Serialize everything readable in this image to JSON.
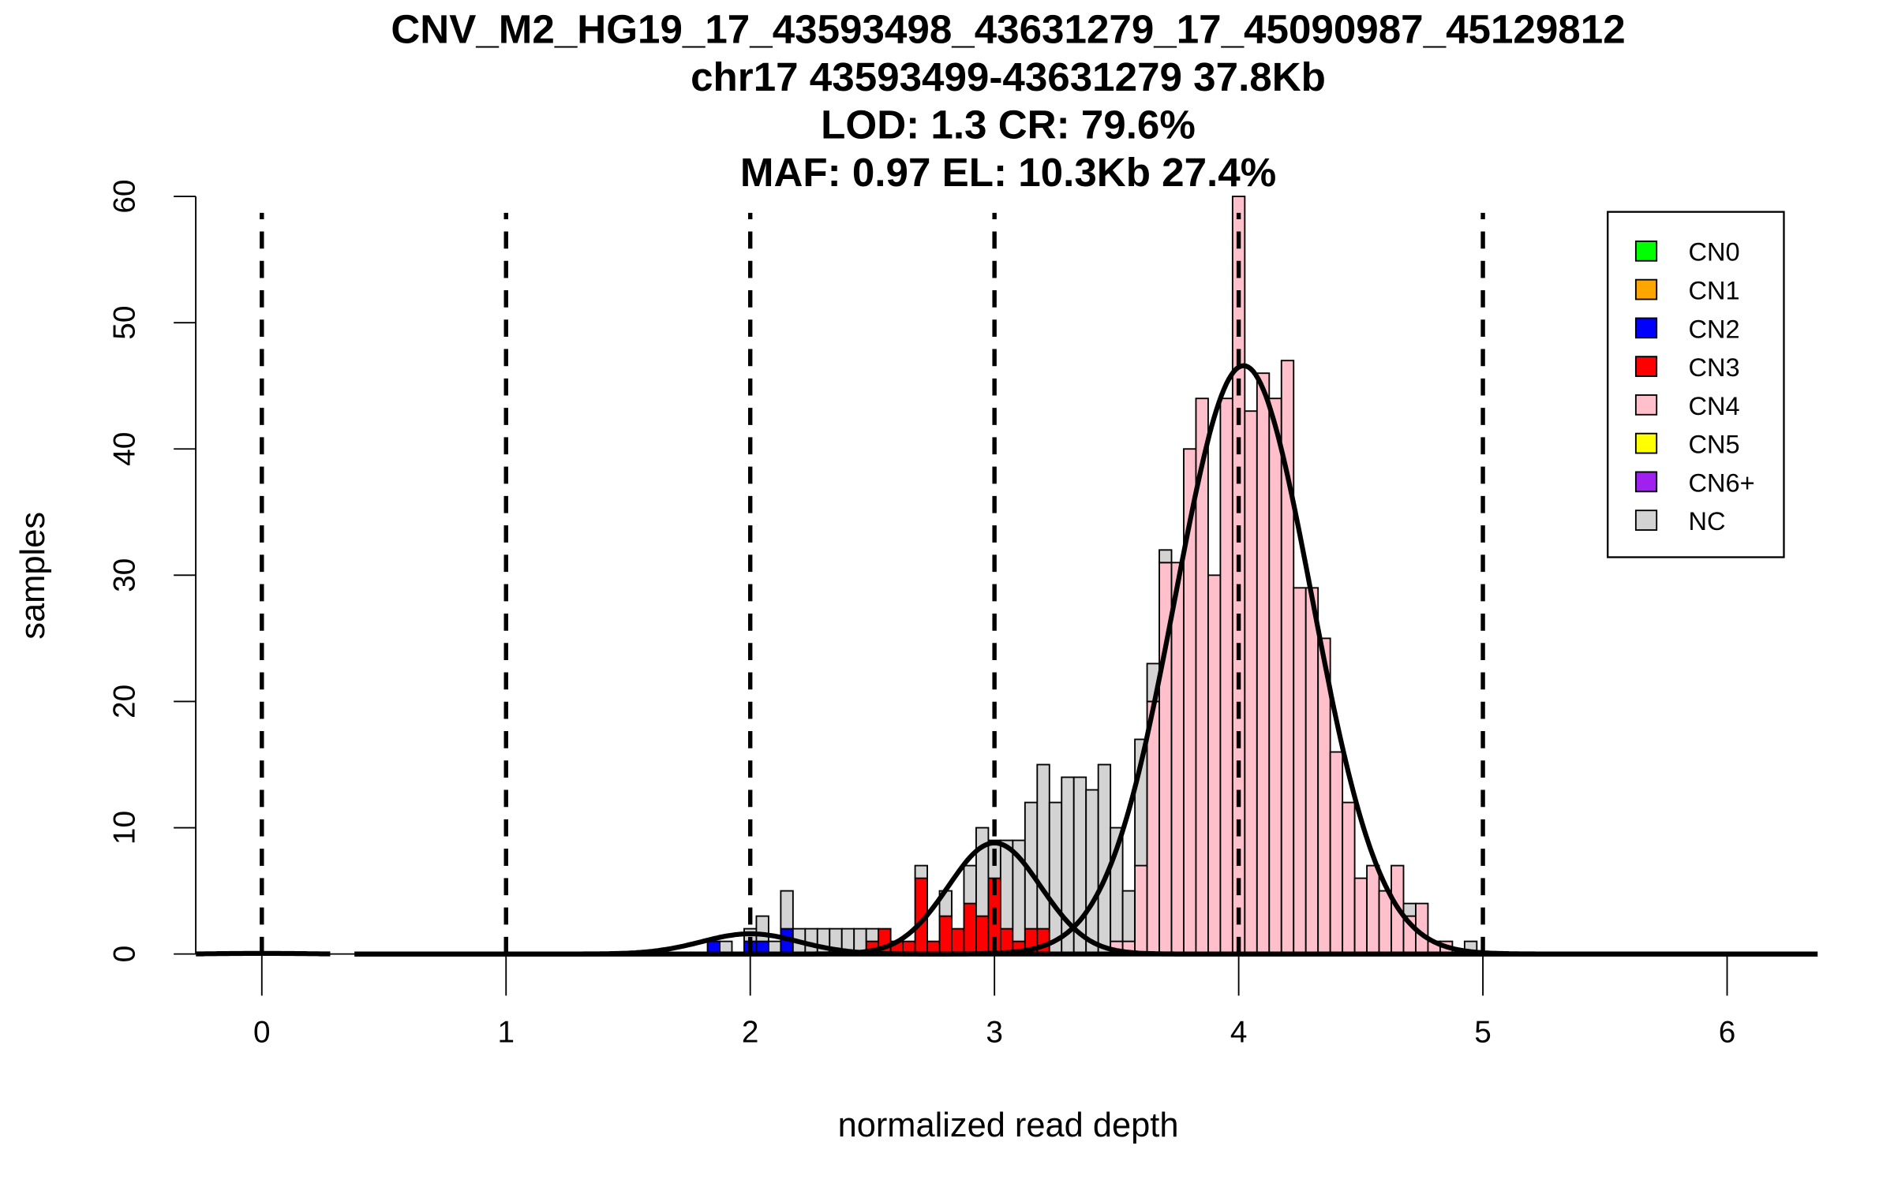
{
  "chart_data": {
    "type": "bar",
    "subtype": "stacked histogram with fitted gaussian curves",
    "title_lines": [
      "CNV_M2_HG19_17_43593498_43631279_17_45090987_45129812",
      "chr17 43593499-43631279 37.8Kb",
      "LOD: 1.3 CR: 79.6%",
      "MAF: 0.97 EL: 10.3Kb 27.4%"
    ],
    "xlabel": "normalized read depth",
    "ylabel": "samples",
    "xlim": [
      -0.27,
      6.37
    ],
    "ylim": [
      0,
      60
    ],
    "x_ticks": [
      "0",
      "1",
      "2",
      "3",
      "4",
      "5",
      "6"
    ],
    "y_ticks": [
      "0",
      "10",
      "20",
      "30",
      "40",
      "50",
      "60"
    ],
    "bin_width": 0.05,
    "legend": {
      "placement": "top-right",
      "entries": [
        {
          "label": "CN0",
          "color": "#00ff00"
        },
        {
          "label": "CN1",
          "color": "#ffa500"
        },
        {
          "label": "CN2",
          "color": "#0000ff"
        },
        {
          "label": "CN3",
          "color": "#ff0000"
        },
        {
          "label": "CN4",
          "color": "#ffc0cb"
        },
        {
          "label": "CN5",
          "color": "#ffff00"
        },
        {
          "label": "CN6+",
          "color": "#a020f0"
        },
        {
          "label": "NC",
          "color": "#d3d3d3"
        }
      ]
    },
    "stack_order": [
      "CN2",
      "CN3",
      "CN4",
      "NC"
    ],
    "bins": [
      [
        1.85,
        1,
        0,
        0,
        0
      ],
      [
        1.9,
        0,
        0,
        0,
        1
      ],
      [
        2.0,
        1,
        0,
        0,
        1
      ],
      [
        2.05,
        1,
        0,
        0,
        2
      ],
      [
        2.1,
        0,
        0,
        0,
        1
      ],
      [
        2.15,
        2,
        0,
        0,
        3
      ],
      [
        2.2,
        0,
        0,
        0,
        2
      ],
      [
        2.25,
        0,
        0,
        0,
        2
      ],
      [
        2.3,
        0,
        0,
        0,
        2
      ],
      [
        2.35,
        0,
        0,
        0,
        2
      ],
      [
        2.4,
        0,
        0,
        0,
        2
      ],
      [
        2.45,
        0,
        0,
        0,
        2
      ],
      [
        2.5,
        0,
        1,
        0,
        1
      ],
      [
        2.55,
        0,
        2,
        0,
        0
      ],
      [
        2.6,
        0,
        1,
        0,
        0
      ],
      [
        2.65,
        0,
        1,
        0,
        0
      ],
      [
        2.7,
        0,
        6,
        0,
        1
      ],
      [
        2.75,
        0,
        1,
        0,
        0
      ],
      [
        2.8,
        0,
        3,
        0,
        2
      ],
      [
        2.85,
        0,
        2,
        0,
        0
      ],
      [
        2.9,
        0,
        4,
        0,
        3
      ],
      [
        2.95,
        0,
        3,
        0,
        7
      ],
      [
        3.0,
        0,
        6,
        0,
        3
      ],
      [
        3.05,
        0,
        2,
        0,
        7
      ],
      [
        3.1,
        0,
        1,
        0,
        8
      ],
      [
        3.15,
        0,
        2,
        0,
        10
      ],
      [
        3.2,
        0,
        2,
        0,
        13
      ],
      [
        3.25,
        0,
        0,
        0,
        12
      ],
      [
        3.3,
        0,
        0,
        0,
        14
      ],
      [
        3.35,
        0,
        0,
        0,
        14
      ],
      [
        3.4,
        0,
        0,
        0,
        13
      ],
      [
        3.45,
        0,
        0,
        0,
        15
      ],
      [
        3.5,
        0,
        0,
        1,
        9
      ],
      [
        3.55,
        0,
        0,
        1,
        4
      ],
      [
        3.6,
        0,
        0,
        7,
        10
      ],
      [
        3.65,
        0,
        0,
        20,
        3
      ],
      [
        3.7,
        0,
        0,
        31,
        1
      ],
      [
        3.75,
        0,
        0,
        31,
        0
      ],
      [
        3.8,
        0,
        0,
        40,
        0
      ],
      [
        3.85,
        0,
        0,
        44,
        0
      ],
      [
        3.9,
        0,
        0,
        30,
        0
      ],
      [
        3.95,
        0,
        0,
        44,
        0
      ],
      [
        4.0,
        0,
        0,
        60,
        0
      ],
      [
        4.05,
        0,
        0,
        43,
        0
      ],
      [
        4.1,
        0,
        0,
        46,
        0
      ],
      [
        4.15,
        0,
        0,
        44,
        0
      ],
      [
        4.2,
        0,
        0,
        47,
        0
      ],
      [
        4.25,
        0,
        0,
        29,
        0
      ],
      [
        4.3,
        0,
        0,
        29,
        0
      ],
      [
        4.35,
        0,
        0,
        25,
        0
      ],
      [
        4.4,
        0,
        0,
        16,
        0
      ],
      [
        4.45,
        0,
        0,
        12,
        0
      ],
      [
        4.5,
        0,
        0,
        6,
        0
      ],
      [
        4.55,
        0,
        0,
        7,
        0
      ],
      [
        4.6,
        0,
        0,
        5,
        0
      ],
      [
        4.65,
        0,
        0,
        7,
        0
      ],
      [
        4.7,
        0,
        0,
        3,
        1
      ],
      [
        4.75,
        0,
        0,
        4,
        0
      ],
      [
        4.8,
        0,
        0,
        1,
        0
      ],
      [
        4.85,
        0,
        0,
        1,
        0
      ],
      [
        4.95,
        0,
        0,
        0,
        1
      ]
    ],
    "copy_number_lines": [
      0,
      1,
      2,
      3,
      4,
      5
    ],
    "fitted_curves": [
      {
        "name": "CN0",
        "mean": 0,
        "sd": 0.15,
        "height": 0.05,
        "range": [
          -0.27,
          0.28
        ]
      },
      {
        "name": "CN2",
        "mean": 2.0,
        "sd": 0.2,
        "height": 1.6,
        "range": [
          0.38,
          6.37
        ]
      },
      {
        "name": "CN3",
        "mean": 3.0,
        "sd": 0.19,
        "height": 8.8,
        "range": [
          0.38,
          6.37
        ]
      },
      {
        "name": "CN4",
        "mean": 4.02,
        "sd": 0.28,
        "height": 46.6,
        "range": [
          0.38,
          6.37
        ]
      }
    ]
  }
}
